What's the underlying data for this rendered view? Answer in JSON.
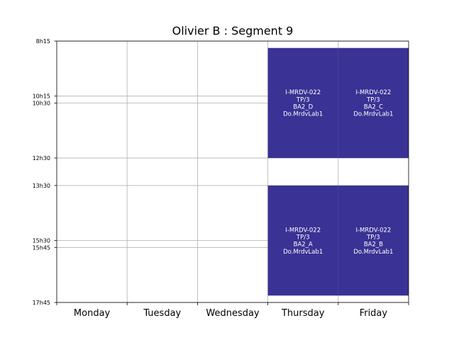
{
  "chart_data": {
    "type": "timetable",
    "title": "Olivier B : Segment 9",
    "days": [
      "Monday",
      "Tuesday",
      "Wednesday",
      "Thursday",
      "Friday"
    ],
    "y_ticks": [
      "8h15",
      "10h15",
      "10h30",
      "12h30",
      "13h30",
      "15h30",
      "15h45",
      "17h45"
    ],
    "y_range": [
      "8h15",
      "17h45"
    ],
    "grid": true,
    "event_color": "#3a3294",
    "events": [
      {
        "day": "Thursday",
        "start": "8h30",
        "end": "12h30",
        "lines": [
          "I-MRDV-022",
          "TP/3",
          "BA2_D",
          "Do.MrdvLab1"
        ]
      },
      {
        "day": "Friday",
        "start": "8h30",
        "end": "12h30",
        "lines": [
          "I-MRDV-022",
          "TP/3",
          "BA2_C",
          "Do.MrdvLab1"
        ]
      },
      {
        "day": "Thursday",
        "start": "13h30",
        "end": "17h30",
        "lines": [
          "I-MRDV-022",
          "TP/3",
          "BA2_A",
          "Do.MrdvLab1"
        ]
      },
      {
        "day": "Friday",
        "start": "13h30",
        "end": "17h30",
        "lines": [
          "I-MRDV-022",
          "TP/3",
          "BA2_B",
          "Do.MrdvLab1"
        ]
      }
    ]
  }
}
